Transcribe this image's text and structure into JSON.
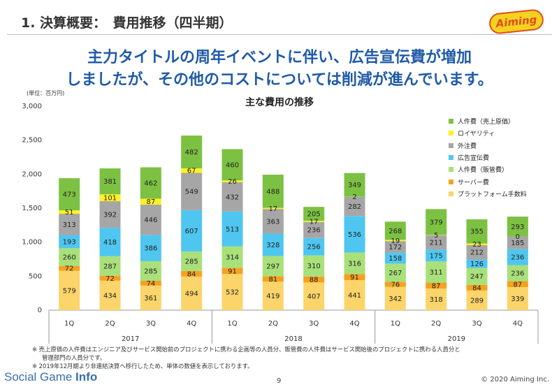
{
  "header": {
    "title": "1. 決算概要：　費用推移（四半期）",
    "logo_text": "Aiming"
  },
  "headline": {
    "line1": "主力タイトルの周年イベントに伴い、広告宣伝費が増加",
    "line2": "しましたが、その他のコストについては削減が進んでいます。"
  },
  "unit_label": "(単位：百万円)",
  "chart_data": {
    "type": "bar",
    "stacked": true,
    "title": "主な費用の推移",
    "xlabel": "",
    "ylabel": "",
    "ylim": [
      0,
      3000
    ],
    "yticks": [
      "0",
      "500",
      "1,000",
      "1,500",
      "2,000",
      "2,500",
      "3,000"
    ],
    "grid": false,
    "legend_position": "right",
    "categories": [
      "1Q",
      "2Q",
      "3Q",
      "4Q",
      "1Q",
      "2Q",
      "3Q",
      "4Q",
      "1Q",
      "2Q",
      "3Q",
      "4Q"
    ],
    "years": [
      {
        "label": "2017",
        "span": 4
      },
      {
        "label": "2018",
        "span": 4
      },
      {
        "label": "2019",
        "span": 4
      }
    ],
    "series": [
      {
        "name": "プラットフォーム手数料",
        "color": "#fbd46a",
        "values": [
          579,
          434,
          361,
          494,
          532,
          419,
          407,
          441,
          342,
          318,
          289,
          339
        ]
      },
      {
        "name": "サーバー費",
        "color": "#f5a11f",
        "values": [
          72,
          72,
          74,
          84,
          91,
          81,
          88,
          91,
          76,
          87,
          84,
          87
        ]
      },
      {
        "name": "人件費（販管費）",
        "color": "#a9e07a",
        "values": [
          260,
          287,
          285,
          285,
          314,
          297,
          310,
          316,
          267,
          311,
          247,
          236
        ]
      },
      {
        "name": "広告宣伝費",
        "color": "#4fc6f0",
        "values": [
          193,
          418,
          386,
          607,
          513,
          328,
          256,
          536,
          158,
          175,
          126,
          236
        ]
      },
      {
        "name": "外注費",
        "color": "#a6a6a6",
        "values": [
          313,
          392,
          446,
          549,
          432,
          363,
          236,
          282,
          172,
          211,
          212,
          185
        ]
      },
      {
        "name": "ロイヤリティ",
        "color": "#fff21f",
        "values": [
          51,
          101,
          87,
          67,
          26,
          17,
          17,
          2,
          19,
          5,
          23,
          0
        ]
      },
      {
        "name": "人件費（売上原価）",
        "color": "#7cc142",
        "values": [
          473,
          381,
          462,
          482,
          460,
          488,
          205,
          349,
          268,
          379,
          355,
          293
        ]
      }
    ]
  },
  "notes": {
    "note1": "※ 売上原価の人件費はエンジニア及びサービス開始前のプロジェクトに携わる企画等の人員分、販管費の人件費はサービス開始後のプロジェクトに携わる人員分と",
    "note1b": "管理部門の人員分です。",
    "note2": "※ 2019年12月期より非連結決算へ移行したため、単体の数値を表示しております。"
  },
  "footer": {
    "watermark_regular": "Social Game ",
    "watermark_bold": "Info",
    "page_number": "9",
    "copyright": "© 2020 Aiming Inc."
  }
}
